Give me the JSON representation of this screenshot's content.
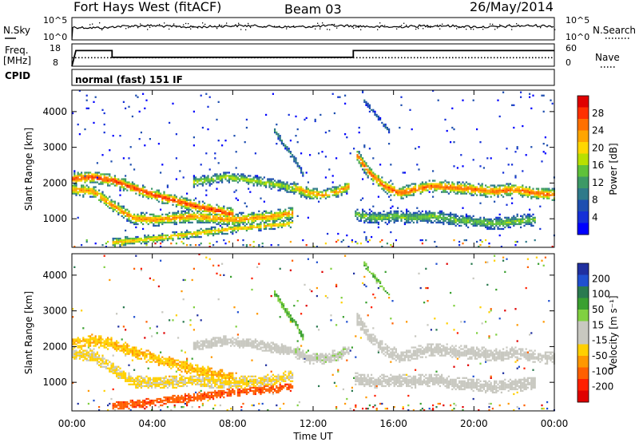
{
  "header": {
    "title": "Fort Hays West (fitACF)",
    "beam": "Beam 03",
    "date": "26/May/2014"
  },
  "status_panels": {
    "nsky_label": "N.Sky",
    "nsky_ticks": [
      "10^5",
      "10^0"
    ],
    "nsearch_label": "N.Search",
    "nsearch_ticks": [
      "10^5",
      "10^0"
    ],
    "freq_label": "Freq.",
    "freq_unit": "[MHz]",
    "freq_ticks": [
      "18",
      "8"
    ],
    "nave_label": "Nave",
    "nave_ticks": [
      "60",
      "0"
    ],
    "cpid_label": "CPID",
    "cpid_value": "normal (fast) 151 IF"
  },
  "axes": {
    "x_label": "Time UT",
    "x_ticks": [
      "00:00",
      "04:00",
      "08:00",
      "12:00",
      "16:00",
      "20:00",
      "00:00"
    ],
    "y_label": "Slant Range [km]",
    "y_ticks": [
      "1000",
      "2000",
      "3000",
      "4000"
    ]
  },
  "colorbars": {
    "power": {
      "label": "Power [dB]",
      "ticks": [
        "28",
        "24",
        "20",
        "16",
        "12",
        "8",
        "4"
      ],
      "colors": [
        "#e00000",
        "#ff3000",
        "#ff7000",
        "#ffa500",
        "#ffd700",
        "#b8e000",
        "#5fc23a",
        "#3d9966",
        "#2f7a8a",
        "#1f4fb0",
        "#1530d8",
        "#0000ff"
      ]
    },
    "velocity": {
      "label": "Velocity [m s⁻¹]",
      "ticks": [
        "200",
        "100",
        "50",
        "15",
        "-15",
        "-50",
        "-100",
        "-200"
      ],
      "colors": [
        "#2030a0",
        "#2050d0",
        "#2a7a50",
        "#3aa030",
        "#80d040",
        "#c8c8c0",
        "#c8c8c0",
        "#ffd000",
        "#ff9800",
        "#ff6000",
        "#ff2000",
        "#e00000"
      ]
    }
  },
  "chart_data": [
    {
      "type": "line",
      "title": "Freq. [MHz]",
      "x_unit": "hours UT",
      "ylim": [
        8,
        18
      ],
      "series": [
        {
          "x": [
            0,
            0.2,
            2.0,
            2.0,
            14.0,
            14.0,
            24
          ],
          "y": [
            8,
            15,
            15,
            12,
            12,
            15,
            15
          ]
        }
      ]
    },
    {
      "type": "line",
      "title": "Nave",
      "x_unit": "hours UT",
      "ylim": [
        0,
        60
      ],
      "series": [
        {
          "x": [
            0,
            24
          ],
          "y": [
            23,
            23
          ]
        }
      ]
    },
    {
      "type": "heatmap",
      "title": "Power [dB]",
      "xlabel": "Time UT",
      "ylabel": "Slant Range [km]",
      "xlim": [
        0,
        24
      ],
      "ylim": [
        200,
        4600
      ],
      "zlim": [
        0,
        30
      ],
      "bands": [
        {
          "name": "A",
          "pts": [
            [
              0,
              2100
            ],
            [
              1,
              2150
            ],
            [
              2,
              2050
            ],
            [
              3,
              1850
            ],
            [
              4,
              1650
            ],
            [
              5,
              1500
            ],
            [
              6,
              1350
            ],
            [
              7,
              1230
            ],
            [
              8,
              1100
            ]
          ],
          "width": 280,
          "peak": 26
        },
        {
          "name": "B",
          "pts": [
            [
              0,
              1800
            ],
            [
              1,
              1750
            ],
            [
              2,
              1350
            ],
            [
              3,
              1000
            ],
            [
              4,
              950
            ],
            [
              5,
              1000
            ],
            [
              6,
              1050
            ],
            [
              7,
              1000
            ],
            [
              8,
              950
            ],
            [
              9,
              1000
            ],
            [
              10,
              1050
            ],
            [
              11,
              1150
            ]
          ],
          "width": 300,
          "peak": 22
        },
        {
          "name": "C",
          "pts": [
            [
              2,
              320
            ],
            [
              4,
              420
            ],
            [
              6,
              560
            ],
            [
              8,
              700
            ],
            [
              10,
              800
            ],
            [
              11,
              850
            ]
          ],
          "width": 200,
          "peak": 20
        },
        {
          "name": "D",
          "pts": [
            [
              6,
              2000
            ],
            [
              7.5,
              2150
            ],
            [
              9,
              2050
            ],
            [
              10.5,
              1900
            ],
            [
              11.5,
              1700
            ],
            [
              12,
              1600
            ]
          ],
          "width": 240,
          "peak": 16
        },
        {
          "name": "E",
          "pts": [
            [
              11,
              1850
            ],
            [
              11.8,
              1700
            ],
            [
              12.5,
              1650
            ],
            [
              13.2,
              1750
            ],
            [
              13.8,
              1900
            ]
          ],
          "width": 260,
          "peak": 22
        },
        {
          "name": "F",
          "pts": [
            [
              14.1,
              2800
            ],
            [
              14.7,
              2300
            ],
            [
              15.5,
              1900
            ],
            [
              16.3,
              1700
            ],
            [
              17,
              1800
            ],
            [
              18,
              1900
            ],
            [
              19,
              1850
            ],
            [
              20,
              1800
            ],
            [
              21,
              1750
            ],
            [
              22,
              1800
            ],
            [
              23,
              1700
            ],
            [
              24,
              1650
            ]
          ],
          "width": 300,
          "peak": 24
        },
        {
          "name": "G",
          "pts": [
            [
              14,
              1100
            ],
            [
              15,
              1000
            ],
            [
              16,
              1050
            ],
            [
              17,
              1000
            ],
            [
              18,
              1050
            ],
            [
              19,
              950
            ],
            [
              20,
              900
            ],
            [
              21,
              850
            ],
            [
              22,
              900
            ],
            [
              23,
              950
            ]
          ],
          "width": 300,
          "peak": 14
        },
        {
          "name": "H",
          "pts": [
            [
              10,
              3500
            ],
            [
              10.6,
              3000
            ],
            [
              11.1,
              2600
            ],
            [
              11.5,
              2200
            ]
          ],
          "width": 160,
          "peak": 10
        },
        {
          "name": "I",
          "pts": [
            [
              14.5,
              4300
            ],
            [
              15.2,
              3800
            ],
            [
              15.8,
              3400
            ]
          ],
          "width": 120,
          "peak": 8
        }
      ]
    },
    {
      "type": "heatmap",
      "title": "Velocity [m s⁻¹]",
      "xlabel": "Time UT",
      "ylabel": "Slant Range [km]",
      "xlim": [
        0,
        24
      ],
      "ylim": [
        200,
        4600
      ],
      "zlim": [
        -200,
        200
      ],
      "bands": [
        {
          "name": "A",
          "pts": [
            [
              0,
              2100
            ],
            [
              1,
              2150
            ],
            [
              2,
              2050
            ],
            [
              3,
              1850
            ],
            [
              4,
              1650
            ],
            [
              5,
              1500
            ],
            [
              6,
              1350
            ],
            [
              7,
              1230
            ],
            [
              8,
              1100
            ]
          ],
          "width": 280,
          "velocity": -60
        },
        {
          "name": "B",
          "pts": [
            [
              0,
              1800
            ],
            [
              1,
              1750
            ],
            [
              2,
              1350
            ],
            [
              3,
              1000
            ],
            [
              4,
              950
            ],
            [
              5,
              1000
            ],
            [
              6,
              1050
            ],
            [
              7,
              1000
            ],
            [
              8,
              950
            ],
            [
              9,
              1000
            ],
            [
              10,
              1050
            ],
            [
              11,
              1150
            ]
          ],
          "width": 300,
          "velocity": -40
        },
        {
          "name": "C",
          "pts": [
            [
              2,
              320
            ],
            [
              4,
              420
            ],
            [
              6,
              560
            ],
            [
              8,
              700
            ],
            [
              10,
              800
            ],
            [
              11,
              850
            ]
          ],
          "width": 200,
          "velocity": -120
        },
        {
          "name": "D",
          "pts": [
            [
              6,
              2000
            ],
            [
              7.5,
              2150
            ],
            [
              9,
              2050
            ],
            [
              10.5,
              1900
            ],
            [
              11.5,
              1700
            ],
            [
              12,
              1600
            ]
          ],
          "width": 240,
          "velocity": 0
        },
        {
          "name": "E",
          "pts": [
            [
              11,
              1850
            ],
            [
              11.8,
              1700
            ],
            [
              12.5,
              1650
            ],
            [
              13.2,
              1750
            ],
            [
              13.8,
              1900
            ]
          ],
          "width": 260,
          "velocity": 20
        },
        {
          "name": "F",
          "pts": [
            [
              14.1,
              2800
            ],
            [
              14.7,
              2300
            ],
            [
              15.5,
              1900
            ],
            [
              16.3,
              1700
            ],
            [
              17,
              1800
            ],
            [
              18,
              1900
            ],
            [
              19,
              1850
            ],
            [
              20,
              1800
            ],
            [
              21,
              1750
            ],
            [
              22,
              1800
            ],
            [
              23,
              1700
            ],
            [
              24,
              1650
            ]
          ],
          "width": 300,
          "velocity": 0
        },
        {
          "name": "G",
          "pts": [
            [
              14,
              1100
            ],
            [
              15,
              1000
            ],
            [
              16,
              1050
            ],
            [
              17,
              1000
            ],
            [
              18,
              1050
            ],
            [
              19,
              950
            ],
            [
              20,
              900
            ],
            [
              21,
              850
            ],
            [
              22,
              900
            ],
            [
              23,
              950
            ]
          ],
          "width": 300,
          "velocity": 0
        },
        {
          "name": "H",
          "pts": [
            [
              10,
              3500
            ],
            [
              10.6,
              3000
            ],
            [
              11.1,
              2600
            ],
            [
              11.5,
              2200
            ]
          ],
          "width": 160,
          "velocity": 70
        },
        {
          "name": "I",
          "pts": [
            [
              14.5,
              4300
            ],
            [
              15.2,
              3800
            ],
            [
              15.8,
              3400
            ]
          ],
          "width": 120,
          "velocity": 60
        }
      ]
    }
  ]
}
